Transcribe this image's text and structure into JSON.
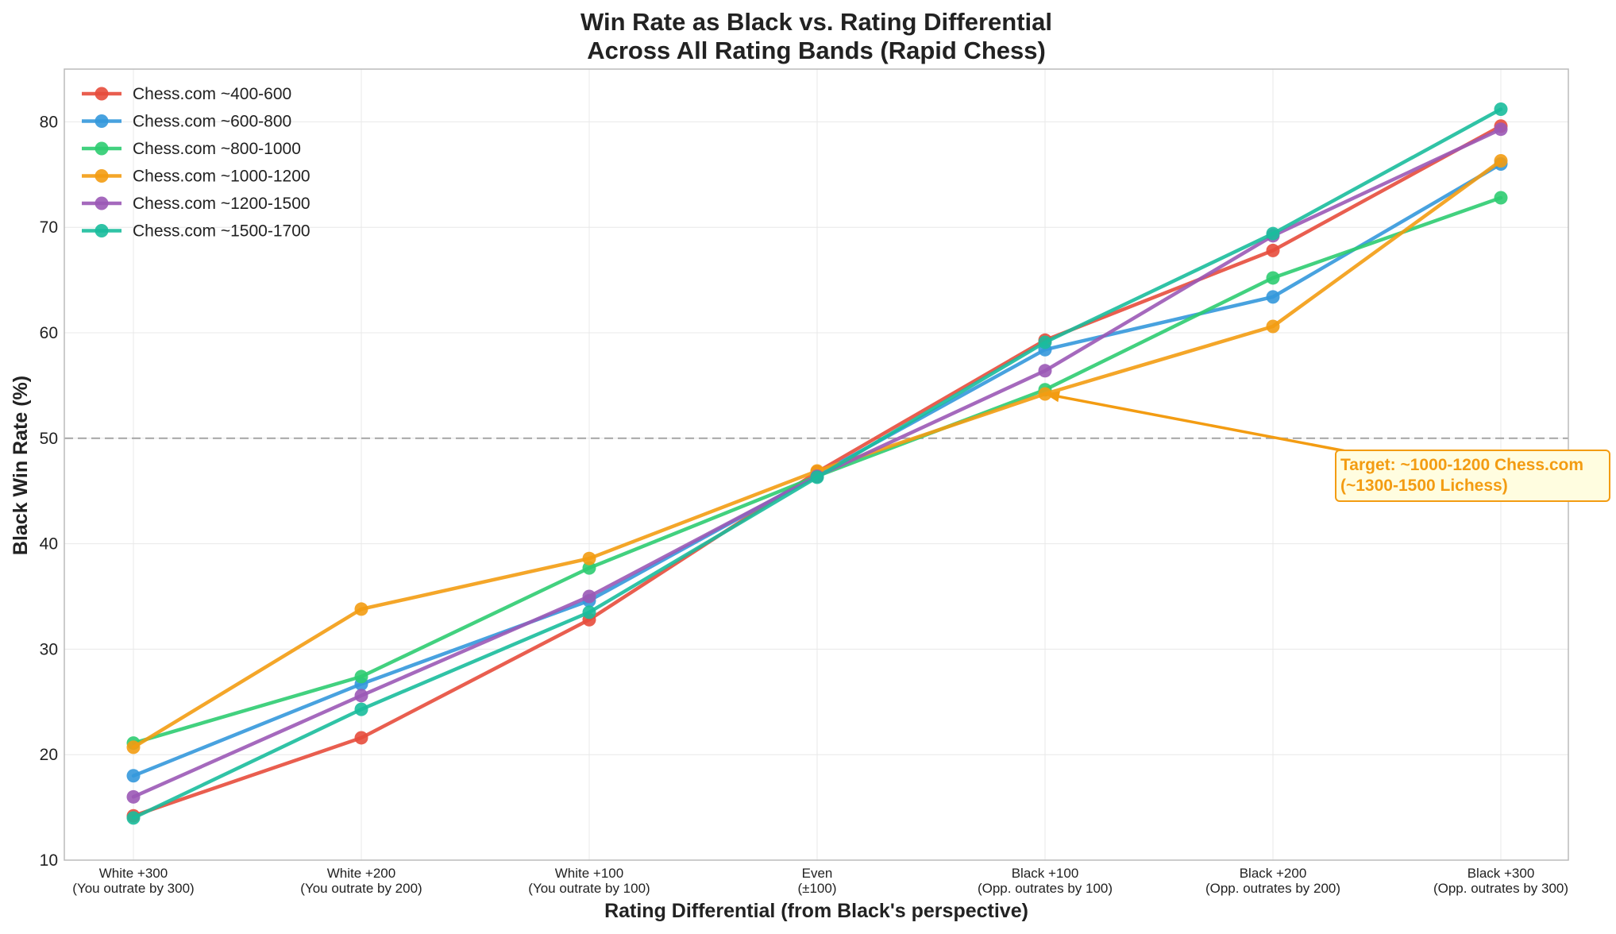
{
  "chart_data": {
    "type": "line",
    "title_lines": [
      "Win Rate as Black vs. Rating Differential",
      "Across All Rating Bands (Rapid Chess)"
    ],
    "xlabel": "Rating Differential (from Black's perspective)",
    "ylabel": "Black Win Rate (%)",
    "ylim": [
      10,
      85
    ],
    "yticks": [
      10,
      20,
      30,
      40,
      50,
      60,
      70,
      80
    ],
    "grid": true,
    "legend_position": "top-left",
    "categories": [
      [
        "White +300",
        "(You outrate by 300)"
      ],
      [
        "White +200",
        "(You outrate by 200)"
      ],
      [
        "White +100",
        "(You outrate by 100)"
      ],
      [
        "Even",
        "(±100)"
      ],
      [
        "Black +100",
        "(Opp. outrates by 100)"
      ],
      [
        "Black +200",
        "(Opp. outrates by 200)"
      ],
      [
        "Black +300",
        "(Opp. outrates by 300)"
      ]
    ],
    "reference_line": {
      "y": 50,
      "style": "dashed",
      "color": "#aaaaaa"
    },
    "series": [
      {
        "name": "Chess.com ~400-600",
        "color": "#e74c3c",
        "values": [
          14.2,
          21.6,
          32.8,
          46.8,
          59.3,
          67.8,
          79.6
        ]
      },
      {
        "name": "Chess.com ~600-800",
        "color": "#3498db",
        "values": [
          18.0,
          26.7,
          34.6,
          46.5,
          58.4,
          63.4,
          76.0
        ]
      },
      {
        "name": "Chess.com ~800-1000",
        "color": "#2ecc71",
        "values": [
          21.1,
          27.4,
          37.7,
          46.4,
          54.6,
          65.2,
          72.8
        ]
      },
      {
        "name": "Chess.com ~1000-1200",
        "color": "#f39c12",
        "values": [
          20.7,
          33.8,
          38.6,
          46.9,
          54.2,
          60.6,
          76.3
        ]
      },
      {
        "name": "Chess.com ~1200-1500",
        "color": "#9b59b6",
        "values": [
          16.0,
          25.6,
          35.0,
          46.4,
          56.4,
          69.2,
          79.3
        ]
      },
      {
        "name": "Chess.com ~1500-1700",
        "color": "#1abc9c",
        "values": [
          14.0,
          24.3,
          33.5,
          46.3,
          59.1,
          69.4,
          81.2
        ]
      }
    ],
    "annotation": {
      "lines": [
        "Target: ~1000-1200 Chess.com",
        "(~1300-1500 Lichess)"
      ],
      "color": "#f39c12",
      "background": "#fffde0",
      "target_category_index": 4,
      "target_value": 54.2
    }
  }
}
